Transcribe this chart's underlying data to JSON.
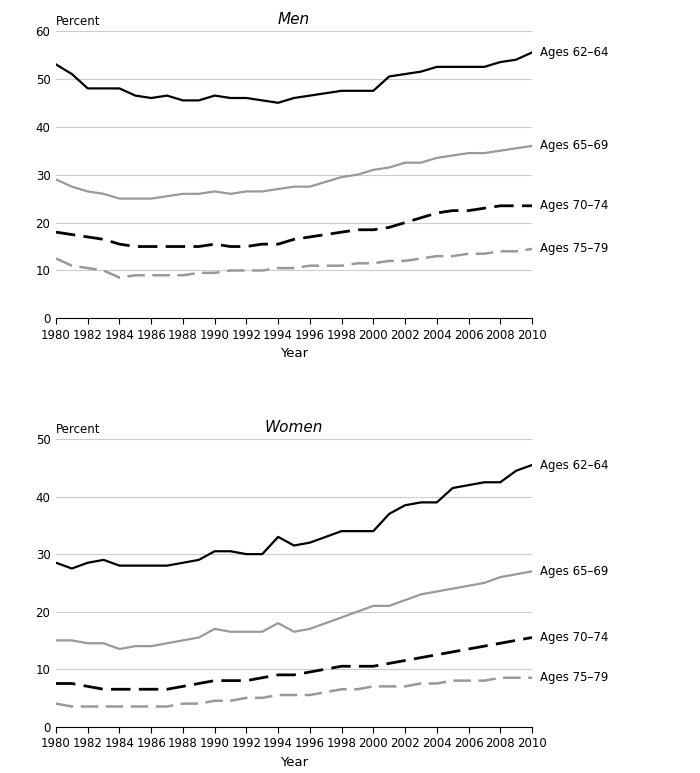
{
  "years": [
    1980,
    1981,
    1982,
    1983,
    1984,
    1985,
    1986,
    1987,
    1988,
    1989,
    1990,
    1991,
    1992,
    1993,
    1994,
    1995,
    1996,
    1997,
    1998,
    1999,
    2000,
    2001,
    2002,
    2003,
    2004,
    2005,
    2006,
    2007,
    2008,
    2009,
    2010
  ],
  "men": {
    "ages_62_64": [
      53.0,
      51.0,
      48.0,
      48.0,
      48.0,
      46.5,
      46.0,
      46.5,
      45.5,
      45.5,
      46.5,
      46.0,
      46.0,
      45.5,
      45.0,
      46.0,
      46.5,
      47.0,
      47.5,
      47.5,
      47.5,
      50.5,
      51.0,
      51.5,
      52.5,
      52.5,
      52.5,
      52.5,
      53.5,
      54.0,
      55.5
    ],
    "ages_65_69": [
      29.0,
      27.5,
      26.5,
      26.0,
      25.0,
      25.0,
      25.0,
      25.5,
      26.0,
      26.0,
      26.5,
      26.0,
      26.5,
      26.5,
      27.0,
      27.5,
      27.5,
      28.5,
      29.5,
      30.0,
      31.0,
      31.5,
      32.5,
      32.5,
      33.5,
      34.0,
      34.5,
      34.5,
      35.0,
      35.5,
      36.0
    ],
    "ages_70_74": [
      18.0,
      17.5,
      17.0,
      16.5,
      15.5,
      15.0,
      15.0,
      15.0,
      15.0,
      15.0,
      15.5,
      15.0,
      15.0,
      15.5,
      15.5,
      16.5,
      17.0,
      17.5,
      18.0,
      18.5,
      18.5,
      19.0,
      20.0,
      21.0,
      22.0,
      22.5,
      22.5,
      23.0,
      23.5,
      23.5,
      23.5
    ],
    "ages_75_79": [
      12.5,
      11.0,
      10.5,
      10.0,
      8.5,
      9.0,
      9.0,
      9.0,
      9.0,
      9.5,
      9.5,
      10.0,
      10.0,
      10.0,
      10.5,
      10.5,
      11.0,
      11.0,
      11.0,
      11.5,
      11.5,
      12.0,
      12.0,
      12.5,
      13.0,
      13.0,
      13.5,
      13.5,
      14.0,
      14.0,
      14.5
    ]
  },
  "women": {
    "ages_62_64": [
      28.5,
      27.5,
      28.5,
      29.0,
      28.0,
      28.0,
      28.0,
      28.0,
      28.5,
      29.0,
      30.5,
      30.5,
      30.0,
      30.0,
      33.0,
      31.5,
      32.0,
      33.0,
      34.0,
      34.0,
      34.0,
      37.0,
      38.5,
      39.0,
      39.0,
      41.5,
      42.0,
      42.5,
      42.5,
      44.5,
      45.5
    ],
    "ages_65_69": [
      15.0,
      15.0,
      14.5,
      14.5,
      13.5,
      14.0,
      14.0,
      14.5,
      15.0,
      15.5,
      17.0,
      16.5,
      16.5,
      16.5,
      18.0,
      16.5,
      17.0,
      18.0,
      19.0,
      20.0,
      21.0,
      21.0,
      22.0,
      23.0,
      23.5,
      24.0,
      24.5,
      25.0,
      26.0,
      26.5,
      27.0
    ],
    "ages_70_74": [
      7.5,
      7.5,
      7.0,
      6.5,
      6.5,
      6.5,
      6.5,
      6.5,
      7.0,
      7.5,
      8.0,
      8.0,
      8.0,
      8.5,
      9.0,
      9.0,
      9.5,
      10.0,
      10.5,
      10.5,
      10.5,
      11.0,
      11.5,
      12.0,
      12.5,
      13.0,
      13.5,
      14.0,
      14.5,
      15.0,
      15.5
    ],
    "ages_75_79": [
      4.0,
      3.5,
      3.5,
      3.5,
      3.5,
      3.5,
      3.5,
      3.5,
      4.0,
      4.0,
      4.5,
      4.5,
      5.0,
      5.0,
      5.5,
      5.5,
      5.5,
      6.0,
      6.5,
      6.5,
      7.0,
      7.0,
      7.0,
      7.5,
      7.5,
      8.0,
      8.0,
      8.0,
      8.5,
      8.5,
      8.5
    ]
  },
  "men_ylim": [
    0,
    60
  ],
  "women_ylim": [
    0,
    50
  ],
  "men_yticks": [
    0,
    10,
    20,
    30,
    40,
    50,
    60
  ],
  "women_yticks": [
    0,
    10,
    20,
    30,
    40,
    50
  ],
  "xticks": [
    1980,
    1982,
    1984,
    1986,
    1988,
    1990,
    1992,
    1994,
    1996,
    1998,
    2000,
    2002,
    2004,
    2006,
    2008,
    2010
  ],
  "xlabel": "Year",
  "ylabel": "Percent",
  "title_men": "Men",
  "title_women": "Women",
  "label_62_64": "Ages 62–64",
  "label_65_69": "Ages 65–69",
  "label_70_74": "Ages 70–74",
  "label_75_79": "Ages 75–79",
  "color_black": "#000000",
  "color_gray": "#999999",
  "background_color": "#ffffff",
  "grid_color": "#cccccc"
}
